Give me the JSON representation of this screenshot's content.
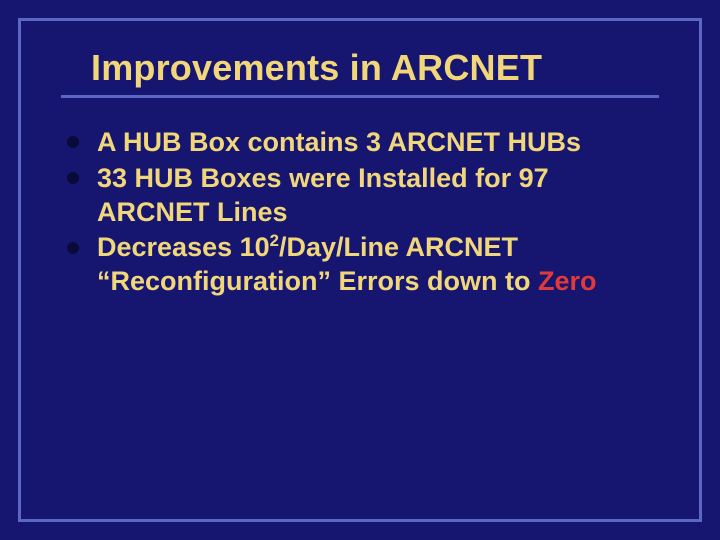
{
  "slide": {
    "background_color": "#161670",
    "frame_border_color": "#5a68c4",
    "rule_color": "#5a68c4",
    "title_color": "#f2d77a",
    "body_text_color": "#f2d77a",
    "bullet_dot_color": "#0a0a3a",
    "accent_color": "#e03a3a",
    "title_fontsize": 36,
    "body_fontsize": 27
  },
  "title": "Improvements in ARCNET",
  "bullets": [
    {
      "text": "A HUB Box contains 3 ARCNET HUBs"
    },
    {
      "text": "33 HUB Boxes were Installed for 97 ARCNET Lines"
    },
    {
      "pre": "Decreases 10",
      "sup": "2",
      "mid": "/Day/Line ARCNET “Reconfiguration” Errors down to ",
      "accent": "Zero"
    }
  ]
}
